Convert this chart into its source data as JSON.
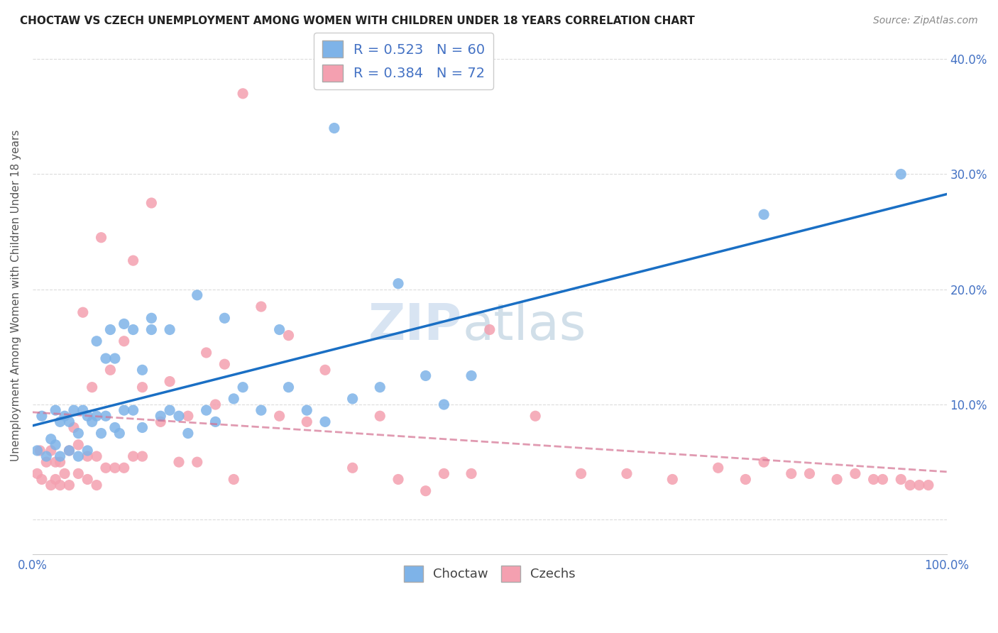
{
  "title": "CHOCTAW VS CZECH UNEMPLOYMENT AMONG WOMEN WITH CHILDREN UNDER 18 YEARS CORRELATION CHART",
  "source": "Source: ZipAtlas.com",
  "ylabel": "Unemployment Among Women with Children Under 18 years",
  "xlim": [
    0,
    1.0
  ],
  "ylim": [
    -0.03,
    0.42
  ],
  "ytick_positions": [
    0.0,
    0.1,
    0.2,
    0.3,
    0.4
  ],
  "yticklabels_right": [
    "",
    "10.0%",
    "20.0%",
    "30.0%",
    "40.0%"
  ],
  "legend_choctaw_R": "0.523",
  "legend_choctaw_N": "60",
  "legend_czech_R": "0.384",
  "legend_czech_N": "72",
  "choctaw_color": "#7eb3e8",
  "czech_color": "#f4a0b0",
  "choctaw_line_color": "#1a6fc4",
  "czech_line_color": "#d4708080",
  "watermark_zip": "ZIP",
  "watermark_atlas": "atlas",
  "background_color": "#ffffff",
  "choctaw_x": [
    0.005,
    0.01,
    0.015,
    0.02,
    0.025,
    0.025,
    0.03,
    0.03,
    0.035,
    0.04,
    0.04,
    0.045,
    0.05,
    0.05,
    0.055,
    0.06,
    0.06,
    0.065,
    0.07,
    0.07,
    0.075,
    0.08,
    0.08,
    0.085,
    0.09,
    0.09,
    0.095,
    0.1,
    0.1,
    0.11,
    0.11,
    0.12,
    0.12,
    0.13,
    0.13,
    0.14,
    0.15,
    0.15,
    0.16,
    0.17,
    0.18,
    0.19,
    0.2,
    0.21,
    0.22,
    0.23,
    0.25,
    0.27,
    0.28,
    0.3,
    0.32,
    0.33,
    0.35,
    0.38,
    0.4,
    0.43,
    0.45,
    0.48,
    0.8,
    0.95
  ],
  "choctaw_y": [
    0.06,
    0.09,
    0.055,
    0.07,
    0.065,
    0.095,
    0.055,
    0.085,
    0.09,
    0.06,
    0.085,
    0.095,
    0.055,
    0.075,
    0.095,
    0.06,
    0.09,
    0.085,
    0.09,
    0.155,
    0.075,
    0.09,
    0.14,
    0.165,
    0.08,
    0.14,
    0.075,
    0.095,
    0.17,
    0.095,
    0.165,
    0.08,
    0.13,
    0.165,
    0.175,
    0.09,
    0.095,
    0.165,
    0.09,
    0.075,
    0.195,
    0.095,
    0.085,
    0.175,
    0.105,
    0.115,
    0.095,
    0.165,
    0.115,
    0.095,
    0.085,
    0.34,
    0.105,
    0.115,
    0.205,
    0.125,
    0.1,
    0.125,
    0.265,
    0.3
  ],
  "czech_x": [
    0.005,
    0.008,
    0.01,
    0.015,
    0.02,
    0.02,
    0.025,
    0.025,
    0.03,
    0.03,
    0.035,
    0.04,
    0.04,
    0.045,
    0.05,
    0.05,
    0.055,
    0.06,
    0.06,
    0.065,
    0.07,
    0.07,
    0.075,
    0.08,
    0.085,
    0.09,
    0.1,
    0.1,
    0.11,
    0.11,
    0.12,
    0.12,
    0.13,
    0.14,
    0.15,
    0.16,
    0.17,
    0.18,
    0.19,
    0.2,
    0.21,
    0.22,
    0.23,
    0.25,
    0.27,
    0.28,
    0.3,
    0.32,
    0.35,
    0.38,
    0.4,
    0.43,
    0.45,
    0.48,
    0.5,
    0.55,
    0.6,
    0.65,
    0.7,
    0.75,
    0.78,
    0.8,
    0.83,
    0.85,
    0.88,
    0.9,
    0.92,
    0.93,
    0.95,
    0.96,
    0.97,
    0.98
  ],
  "czech_y": [
    0.04,
    0.06,
    0.035,
    0.05,
    0.03,
    0.06,
    0.035,
    0.05,
    0.03,
    0.05,
    0.04,
    0.03,
    0.06,
    0.08,
    0.04,
    0.065,
    0.18,
    0.035,
    0.055,
    0.115,
    0.03,
    0.055,
    0.245,
    0.045,
    0.13,
    0.045,
    0.045,
    0.155,
    0.055,
    0.225,
    0.055,
    0.115,
    0.275,
    0.085,
    0.12,
    0.05,
    0.09,
    0.05,
    0.145,
    0.1,
    0.135,
    0.035,
    0.37,
    0.185,
    0.09,
    0.16,
    0.085,
    0.13,
    0.045,
    0.09,
    0.035,
    0.025,
    0.04,
    0.04,
    0.165,
    0.09,
    0.04,
    0.04,
    0.035,
    0.045,
    0.035,
    0.05,
    0.04,
    0.04,
    0.035,
    0.04,
    0.035,
    0.035,
    0.035,
    0.03,
    0.03,
    0.03
  ]
}
